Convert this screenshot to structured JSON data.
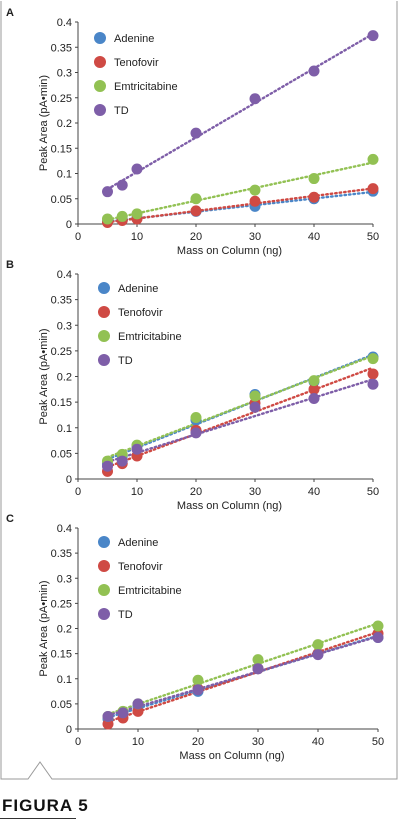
{
  "figure_caption": "FIGURA 5",
  "colors": {
    "Adenine": "#4a86c8",
    "Tenofovir": "#cf4a44",
    "Emtricitabine": "#92c153",
    "TD": "#7e5ea8"
  },
  "chart_data": [
    {
      "type": "scatter",
      "panel": "A",
      "xlabel": "Mass on Column (ng)",
      "ylabel": "Peak Area (pA•min)",
      "xlim": [
        0,
        50
      ],
      "ylim": [
        0,
        0.4
      ],
      "x_ticks": [
        "0",
        "10",
        "20",
        "30",
        "40",
        "50"
      ],
      "y_ticks": [
        "0",
        "0.05",
        "0.1",
        "0.15",
        "0.2",
        "0.25",
        "0.3",
        "0.35",
        "0.4"
      ],
      "legend": "top-left",
      "trendline": "dotted linear",
      "series": [
        {
          "name": "Adenine",
          "x": [
            5,
            7.5,
            10,
            20,
            30,
            40,
            50
          ],
          "y": [
            0.005,
            0.008,
            0.012,
            0.025,
            0.035,
            0.05,
            0.065
          ]
        },
        {
          "name": "Tenofovir",
          "x": [
            5,
            7.5,
            10,
            20,
            30,
            40,
            50
          ],
          "y": [
            0.003,
            0.007,
            0.01,
            0.026,
            0.045,
            0.053,
            0.07
          ]
        },
        {
          "name": "Emtricitabine",
          "x": [
            5,
            7.5,
            10,
            20,
            30,
            40,
            50
          ],
          "y": [
            0.01,
            0.015,
            0.02,
            0.05,
            0.067,
            0.09,
            0.128
          ]
        },
        {
          "name": "TD",
          "x": [
            5,
            7.5,
            10,
            20,
            30,
            40,
            50
          ],
          "y": [
            0.064,
            0.077,
            0.109,
            0.18,
            0.248,
            0.303,
            0.373
          ]
        }
      ]
    },
    {
      "type": "scatter",
      "panel": "B",
      "xlabel": "Mass on Column (ng)",
      "ylabel": "Peak Area (pA•min)",
      "xlim": [
        0,
        50
      ],
      "ylim": [
        0,
        0.4
      ],
      "x_ticks": [
        "0",
        "10",
        "20",
        "30",
        "40",
        "50"
      ],
      "y_ticks": [
        "0",
        "0.05",
        "0.1",
        "0.15",
        "0.2",
        "0.25",
        "0.3",
        "0.35",
        "0.4"
      ],
      "legend": "top-left",
      "trendline": "dotted linear",
      "series": [
        {
          "name": "Adenine",
          "x": [
            5,
            7.5,
            10,
            20,
            30,
            40,
            50
          ],
          "y": [
            0.03,
            0.045,
            0.065,
            0.115,
            0.165,
            0.19,
            0.238
          ]
        },
        {
          "name": "Tenofovir",
          "x": [
            5,
            7.5,
            10,
            20,
            30,
            40,
            50
          ],
          "y": [
            0.015,
            0.03,
            0.045,
            0.095,
            0.148,
            0.175,
            0.205
          ]
        },
        {
          "name": "Emtricitabine",
          "x": [
            5,
            7.5,
            10,
            20,
            30,
            40,
            50
          ],
          "y": [
            0.035,
            0.048,
            0.066,
            0.12,
            0.162,
            0.192,
            0.235
          ]
        },
        {
          "name": "TD",
          "x": [
            5,
            7.5,
            10,
            20,
            30,
            40,
            50
          ],
          "y": [
            0.025,
            0.035,
            0.058,
            0.09,
            0.14,
            0.157,
            0.185
          ]
        }
      ]
    },
    {
      "type": "scatter",
      "panel": "C",
      "xlabel": "Mass on Column (ng)",
      "ylabel": "Peak Area (pA•min)",
      "xlim": [
        0,
        50
      ],
      "ylim": [
        0,
        0.4
      ],
      "x_ticks": [
        "0",
        "10",
        "20",
        "30",
        "40",
        "50"
      ],
      "y_ticks": [
        "0",
        "0.05",
        "0.1",
        "0.15",
        "0.2",
        "0.25",
        "0.3",
        "0.35",
        "0.4"
      ],
      "legend": "top-left",
      "trendline": "dotted linear",
      "series": [
        {
          "name": "Adenine",
          "x": [
            5,
            7.5,
            10,
            20,
            30,
            40,
            50
          ],
          "y": [
            0.02,
            0.03,
            0.045,
            0.075,
            0.12,
            0.15,
            0.182
          ]
        },
        {
          "name": "Tenofovir",
          "x": [
            5,
            7.5,
            10,
            20,
            30,
            40,
            50
          ],
          "y": [
            0.01,
            0.022,
            0.035,
            0.08,
            0.12,
            0.15,
            0.19
          ]
        },
        {
          "name": "Emtricitabine",
          "x": [
            5,
            7.5,
            10,
            20,
            30,
            40,
            50
          ],
          "y": [
            0.025,
            0.035,
            0.05,
            0.097,
            0.138,
            0.168,
            0.205
          ]
        },
        {
          "name": "TD",
          "x": [
            5,
            7.5,
            10,
            20,
            30,
            40,
            50
          ],
          "y": [
            0.025,
            0.032,
            0.05,
            0.078,
            0.12,
            0.148,
            0.182
          ]
        }
      ]
    }
  ]
}
